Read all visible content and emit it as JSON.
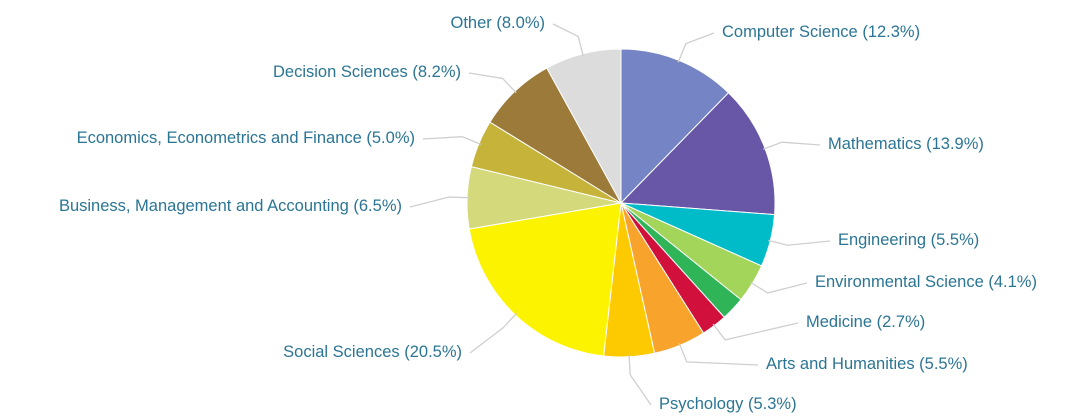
{
  "chart_data": {
    "type": "pie",
    "categories": [
      "Computer Science",
      "Mathematics",
      "Engineering",
      "Environmental Science",
      null,
      "Medicine",
      "Arts and Humanities",
      "Psychology",
      "Social Sciences",
      "Business, Management and Accounting",
      "Economics, Econometrics and Finance",
      "Decision Sciences",
      "Other"
    ],
    "values": [
      12.3,
      13.9,
      5.5,
      4.1,
      2.5,
      2.7,
      5.5,
      5.3,
      20.5,
      6.5,
      5.0,
      8.2,
      8.0
    ],
    "value_labels": [
      "(12.3%)",
      "(13.9%)",
      "(5.5%)",
      "(4.1%)",
      null,
      "(2.7%)",
      "(5.5%)",
      "(5.3%)",
      "(20.5%)",
      "(6.5%)",
      "(5.0%)",
      "(8.2%)",
      "(8.0%)"
    ],
    "colors": [
      "#7484c4",
      "#6757a6",
      "#00bcc8",
      "#a3d55b",
      "#2fb558",
      "#d1103b",
      "#f7a32c",
      "#fdc900",
      "#fbf300",
      "#d4d97b",
      "#c6b43a",
      "#9b7a3a",
      "#dcdcdc"
    ]
  }
}
